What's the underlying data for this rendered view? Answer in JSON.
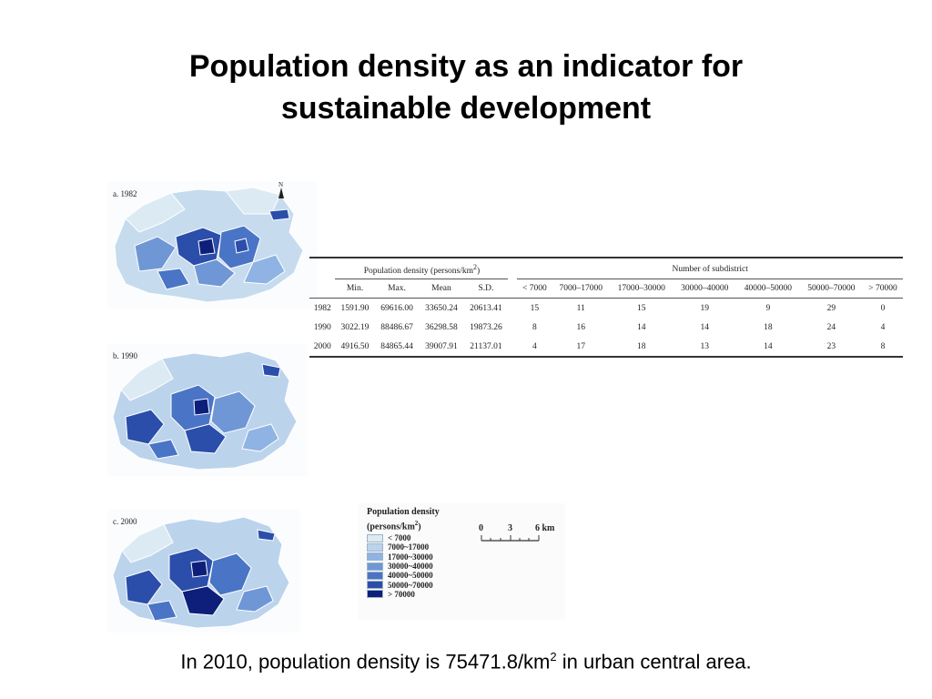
{
  "slide": {
    "title": "Population density as an indicator for sustainable development",
    "footer_prefix": "In 2010, population density is 75471.8/km",
    "footer_sup": "2",
    "footer_suffix": " in urban central area."
  },
  "maps": [
    {
      "label": "a. 1982"
    },
    {
      "label": "b. 1990"
    },
    {
      "label": "c. 2000"
    }
  ],
  "north_arrow": {
    "letter": "N",
    "icon": "north-arrow-icon"
  },
  "table": {
    "group_density": "Population density (persons/km",
    "group_density_sup": "2",
    "group_density_close": ")",
    "group_subdistrict": "Number of subdistrict",
    "columns": [
      "Min.",
      "Max.",
      "Mean",
      "S.D.",
      "< 7000",
      "7000–17000",
      "17000–30000",
      "30000–40000",
      "40000–50000",
      "50000–70000",
      "> 70000"
    ],
    "rows": [
      [
        "1982",
        "1591.90",
        "69616.00",
        "33650.24",
        "20613.41",
        "15",
        "11",
        "15",
        "19",
        "9",
        "29",
        "0"
      ],
      [
        "1990",
        "3022.19",
        "88486.67",
        "36298.58",
        "19873.26",
        "8",
        "16",
        "14",
        "14",
        "18",
        "24",
        "4"
      ],
      [
        "2000",
        "4916.50",
        "84865.44",
        "39007.91",
        "21137.01",
        "4",
        "17",
        "18",
        "13",
        "14",
        "23",
        "8"
      ]
    ]
  },
  "legend": {
    "title_line1": "Population density",
    "title_line2": "(persons/km",
    "title_sup": "2",
    "title_close": ")",
    "classes": [
      {
        "label": "< 7000",
        "color": "#dcebf3"
      },
      {
        "label": "7000~17000",
        "color": "#bcd3ec"
      },
      {
        "label": "17000~30000",
        "color": "#8fb3e2"
      },
      {
        "label": "30000~40000",
        "color": "#6f97d6"
      },
      {
        "label": "40000~50000",
        "color": "#4a74c6"
      },
      {
        "label": "50000~70000",
        "color": "#2a4eaa"
      },
      {
        "label": "> 70000",
        "color": "#0d1f7a"
      }
    ],
    "scale": {
      "ticks": [
        "0",
        "3",
        "6 km"
      ]
    }
  }
}
